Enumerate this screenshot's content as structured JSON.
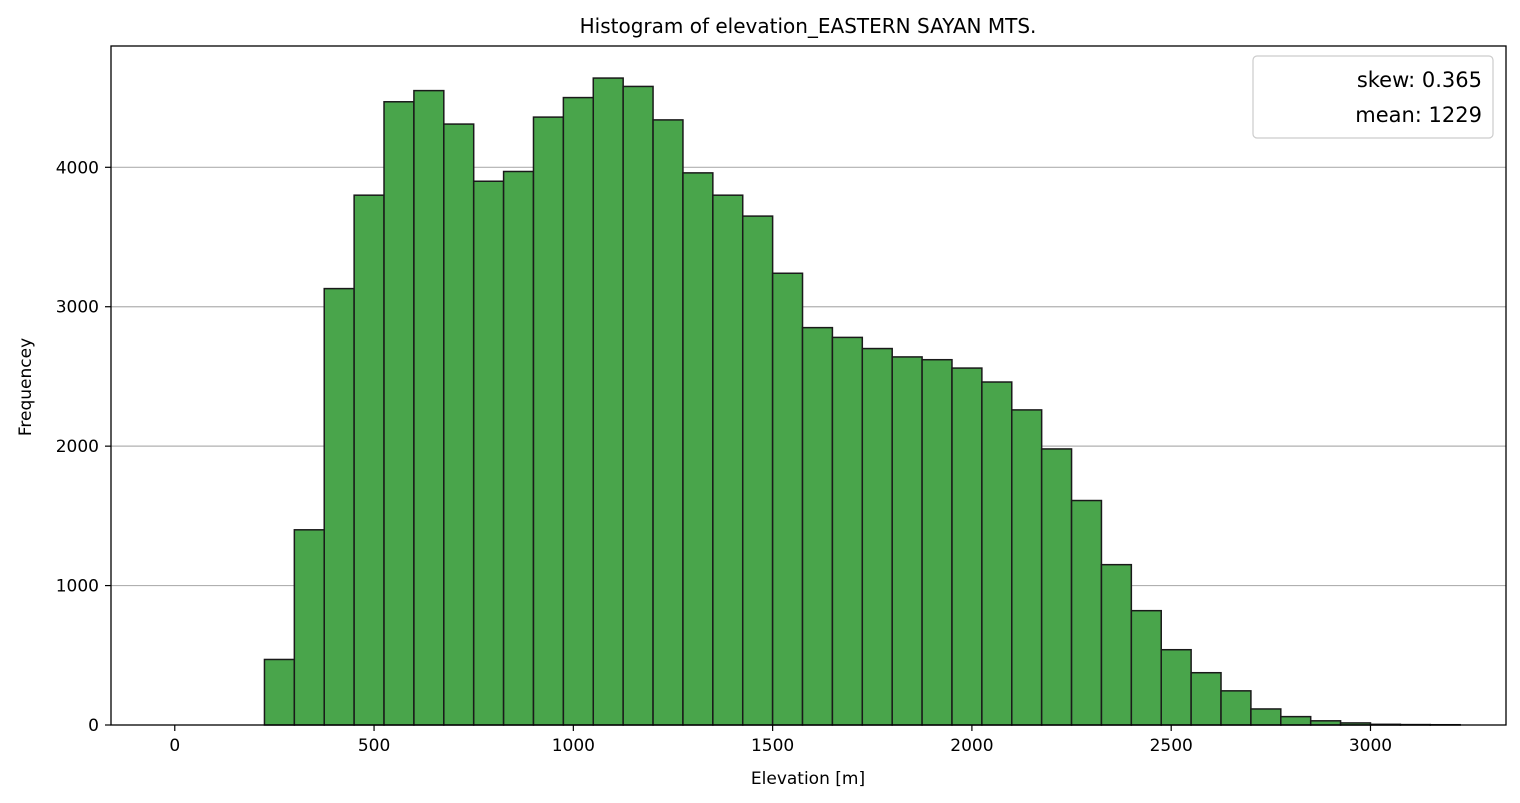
{
  "chart_data": {
    "type": "bar",
    "title": "Histogram of elevation_EASTERN SAYAN MTS.",
    "xlabel": "Elevation [m]",
    "ylabel": "Frequencey",
    "xlim": [
      -160,
      3340
    ],
    "ylim": [
      0,
      4870
    ],
    "xticks": [
      0,
      500,
      1000,
      1500,
      2000,
      2500,
      3000
    ],
    "yticks": [
      0,
      1000,
      2000,
      3000,
      4000
    ],
    "grid": "y",
    "bar_color": "#49a54b",
    "bar_edge_color": "#1a1a1a",
    "bin_edges": [
      0,
      75,
      150,
      225,
      300,
      375,
      450,
      525,
      600,
      675,
      750,
      825,
      900,
      975,
      1050,
      1125,
      1200,
      1275,
      1350,
      1425,
      1500,
      1575,
      1650,
      1725,
      1800,
      1875,
      1950,
      2025,
      2100,
      2175,
      2250,
      2325,
      2400,
      2475,
      2550,
      2625,
      2700,
      2775,
      2850,
      2925,
      3000,
      3075,
      3150,
      3225
    ],
    "values": [
      0,
      0,
      0,
      470,
      1400,
      3130,
      3800,
      4470,
      4550,
      4310,
      3900,
      3970,
      4360,
      4500,
      4640,
      4580,
      4340,
      3960,
      3800,
      3650,
      3240,
      2850,
      2780,
      2700,
      2640,
      2620,
      2560,
      2460,
      2260,
      1980,
      1610,
      1150,
      820,
      540,
      375,
      245,
      115,
      60,
      30,
      15,
      5,
      3,
      2
    ],
    "legend": {
      "position": "top-right",
      "entries": [
        "skew: 0.365",
        "mean: 1229"
      ]
    }
  }
}
